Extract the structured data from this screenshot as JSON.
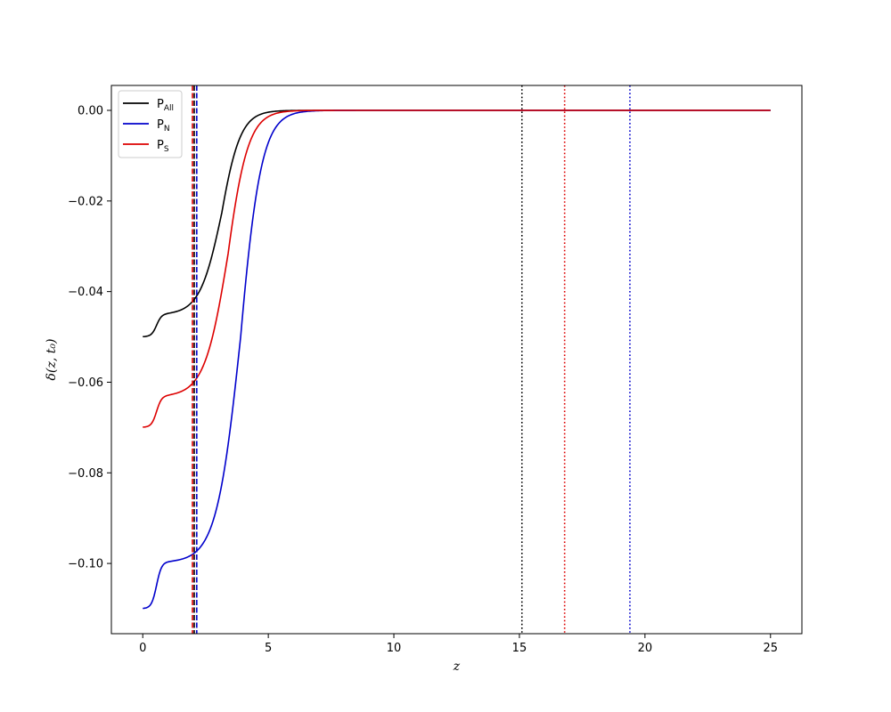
{
  "chart_data": {
    "type": "line",
    "title": "",
    "xlabel": "z",
    "ylabel_html": "δ(z, t₀)",
    "xlim": [
      -1.25,
      26.25
    ],
    "ylim": [
      -0.1155,
      0.0055
    ],
    "xticks": [
      0,
      5,
      10,
      15,
      20,
      25
    ],
    "yticks": [
      0.0,
      -0.02,
      -0.04,
      -0.06,
      -0.08,
      -0.1
    ],
    "ytick_labels": [
      "0.00",
      "−0.02",
      "−0.04",
      "−0.06",
      "−0.08",
      "−0.10"
    ],
    "grid": false,
    "legend_position": "top-left",
    "series": [
      {
        "name": "P",
        "name_sub": "All",
        "color": "#000000",
        "y0": -0.05,
        "y_step1": -0.0451,
        "step1_center": 0.55,
        "step2_center": 3.15,
        "decay_rate": 0.88,
        "x_end": 25
      },
      {
        "name": "P",
        "name_sub": "N",
        "color": "#0000cc",
        "y0": -0.11,
        "y_step1": -0.0998,
        "step1_center": 0.55,
        "step2_center": 3.9,
        "decay_rate": 0.8,
        "x_end": 25
      },
      {
        "name": "P",
        "name_sub": "S",
        "color": "#dd0000",
        "y0": -0.07,
        "y_step1": -0.0632,
        "step1_center": 0.55,
        "step2_center": 3.4,
        "decay_rate": 0.82,
        "x_end": 25
      }
    ],
    "vertical_lines": [
      {
        "x": 1.98,
        "color": "#dd0000",
        "style": "dashed"
      },
      {
        "x": 2.05,
        "color": "#000000",
        "style": "dashed"
      },
      {
        "x": 2.15,
        "color": "#0000cc",
        "style": "dashed"
      },
      {
        "x": 15.1,
        "color": "#000000",
        "style": "dotted"
      },
      {
        "x": 16.8,
        "color": "#dd0000",
        "style": "dotted"
      },
      {
        "x": 19.4,
        "color": "#0000cc",
        "style": "dotted"
      }
    ]
  }
}
